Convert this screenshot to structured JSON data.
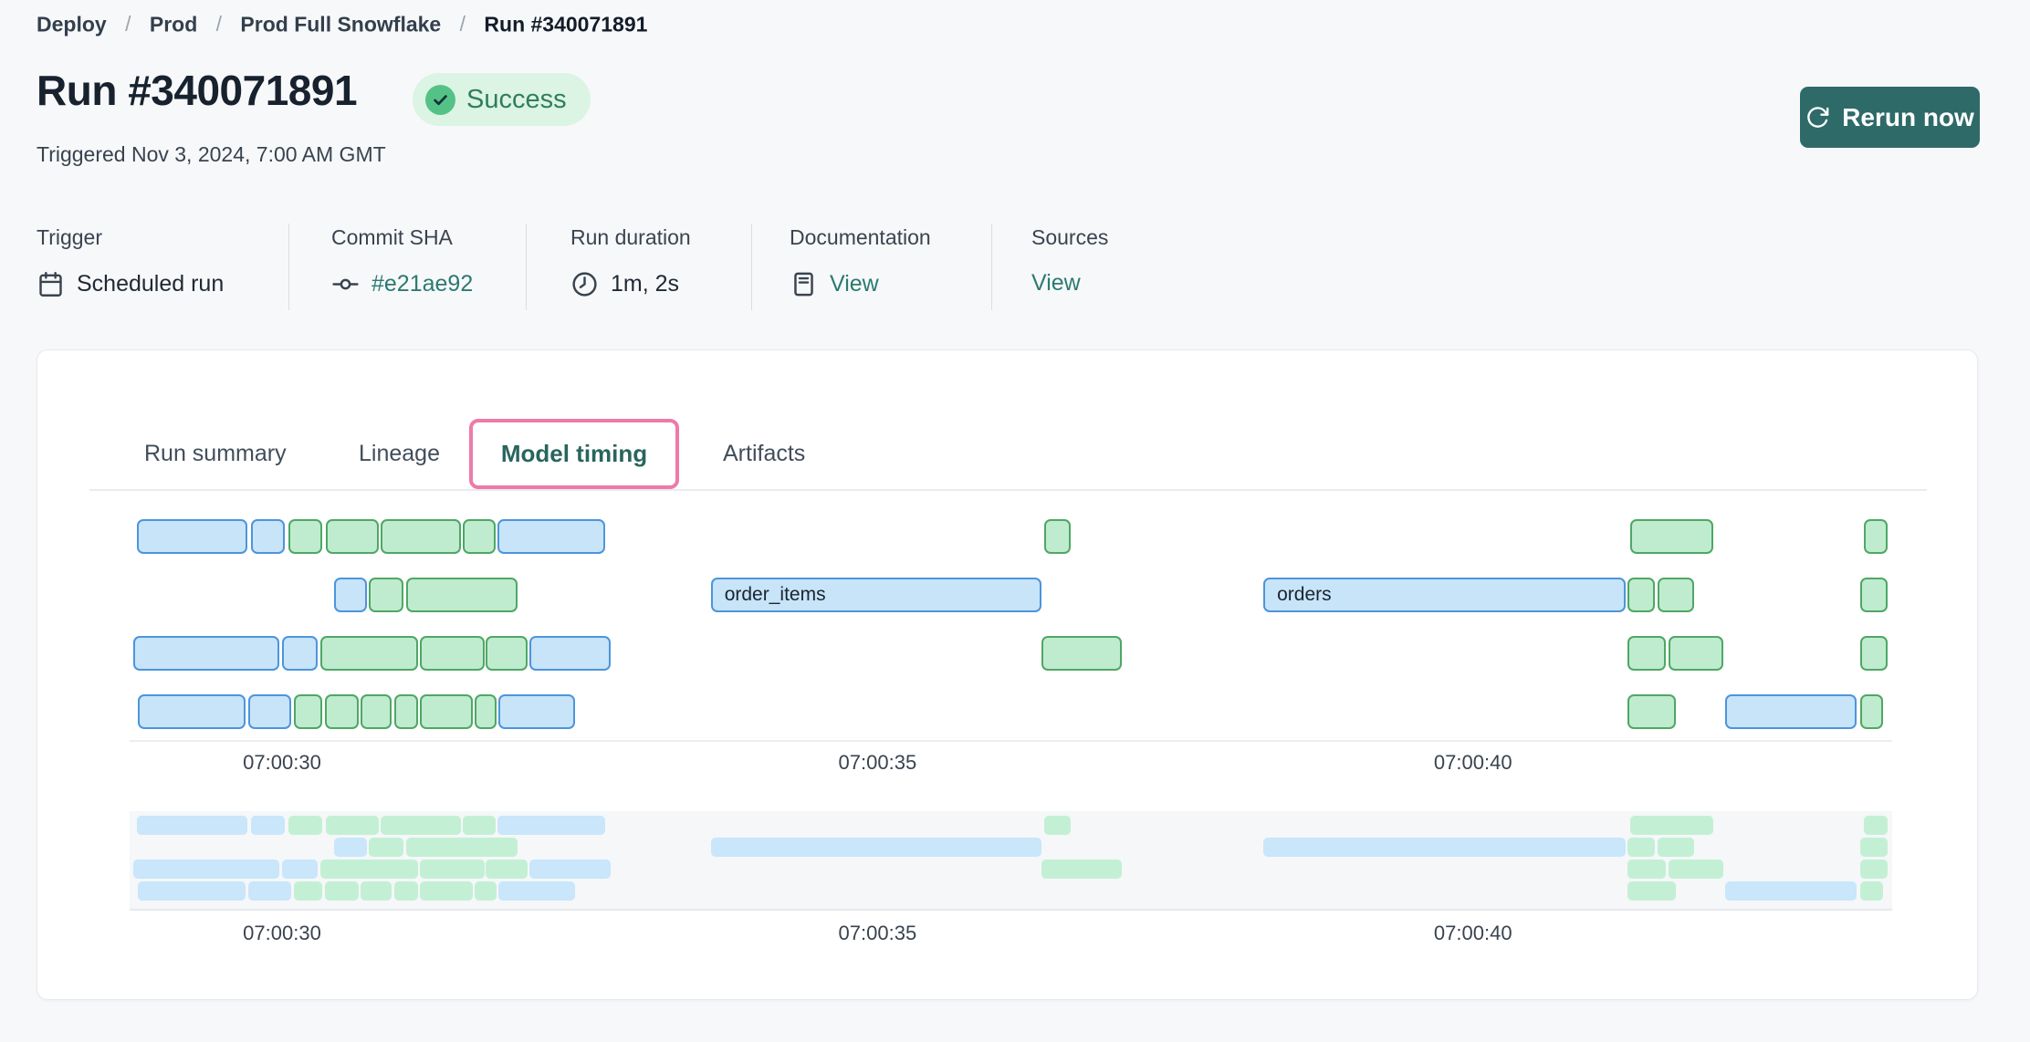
{
  "breadcrumb": {
    "separator": "/",
    "items": [
      "Deploy",
      "Prod",
      "Prod Full Snowflake",
      "Run #340071891"
    ]
  },
  "header": {
    "title": "Run #340071891",
    "status": "Success",
    "triggered": "Triggered Nov 3, 2024, 7:00 AM GMT",
    "rerun_label": "Rerun now"
  },
  "meta": [
    {
      "label": "Trigger",
      "value": "Scheduled run",
      "icon": "calendar-icon",
      "link": false
    },
    {
      "label": "Commit SHA",
      "value": "#e21ae92",
      "icon": "commit-icon",
      "link": true
    },
    {
      "label": "Run duration",
      "value": "1m, 2s",
      "icon": "clock-icon",
      "link": false
    },
    {
      "label": "Documentation",
      "value": "View",
      "icon": "document-icon",
      "link": true
    },
    {
      "label": "Sources",
      "value": "View",
      "icon": null,
      "link": true
    }
  ],
  "tabs": [
    {
      "label": "Run summary",
      "active": false,
      "highlighted": false
    },
    {
      "label": "Lineage",
      "active": false,
      "highlighted": false
    },
    {
      "label": "Model timing",
      "active": true,
      "highlighted": true
    },
    {
      "label": "Artifacts",
      "active": false,
      "highlighted": false
    }
  ],
  "colors": {
    "accent_teal": "#2C7A72",
    "button_bg": "#2E6A68",
    "status_bg": "#DCF4E3",
    "status_icon": "#54C287",
    "highlight_pink": "#EE7AA8",
    "bar_blue_fill": "#C8E4F9",
    "bar_blue_border": "#4D95DB",
    "bar_green_fill": "#BFECCF",
    "bar_green_border": "#4FA765",
    "mini_blue": "#C9E6FA",
    "mini_green": "#C3F0D4"
  },
  "chart_data": {
    "type": "gantt",
    "title": "Model timing",
    "time_axis": {
      "unit": "seconds after 07:00:00 GMT",
      "min": 28.72,
      "max": 43.52,
      "ticks": [
        {
          "t": 30,
          "label": "07:00:30"
        },
        {
          "t": 35,
          "label": "07:00:35"
        },
        {
          "t": 40,
          "label": "07:00:40"
        }
      ]
    },
    "rows": [
      [
        {
          "start": 28.78,
          "end": 29.71,
          "color": "blue"
        },
        {
          "start": 29.74,
          "end": 30.02,
          "color": "blue"
        },
        {
          "start": 30.05,
          "end": 30.34,
          "color": "green"
        },
        {
          "start": 30.37,
          "end": 30.81,
          "color": "green"
        },
        {
          "start": 30.83,
          "end": 31.5,
          "color": "green"
        },
        {
          "start": 31.52,
          "end": 31.79,
          "color": "green"
        },
        {
          "start": 31.81,
          "end": 32.71,
          "color": "blue"
        },
        {
          "start": 36.4,
          "end": 36.62,
          "color": "green"
        },
        {
          "start": 41.32,
          "end": 42.02,
          "color": "green"
        },
        {
          "start": 43.28,
          "end": 43.48,
          "color": "green"
        }
      ],
      [
        {
          "start": 30.44,
          "end": 30.71,
          "color": "blue"
        },
        {
          "start": 30.73,
          "end": 31.02,
          "color": "green"
        },
        {
          "start": 31.04,
          "end": 31.98,
          "color": "green"
        },
        {
          "start": 33.6,
          "end": 36.38,
          "color": "blue",
          "label": "order_items"
        },
        {
          "start": 38.24,
          "end": 41.28,
          "color": "blue",
          "label": "orders"
        },
        {
          "start": 41.3,
          "end": 41.53,
          "color": "green"
        },
        {
          "start": 41.55,
          "end": 41.86,
          "color": "green"
        },
        {
          "start": 43.25,
          "end": 43.48,
          "color": "green"
        }
      ],
      [
        {
          "start": 28.75,
          "end": 29.98,
          "color": "blue"
        },
        {
          "start": 30.0,
          "end": 30.3,
          "color": "blue"
        },
        {
          "start": 30.32,
          "end": 31.14,
          "color": "green"
        },
        {
          "start": 31.16,
          "end": 31.7,
          "color": "green"
        },
        {
          "start": 31.71,
          "end": 32.06,
          "color": "green"
        },
        {
          "start": 32.08,
          "end": 32.76,
          "color": "blue"
        },
        {
          "start": 36.38,
          "end": 37.05,
          "color": "green"
        },
        {
          "start": 41.3,
          "end": 41.62,
          "color": "green"
        },
        {
          "start": 41.64,
          "end": 42.1,
          "color": "green"
        },
        {
          "start": 43.25,
          "end": 43.48,
          "color": "green"
        }
      ],
      [
        {
          "start": 28.79,
          "end": 29.69,
          "color": "blue"
        },
        {
          "start": 29.72,
          "end": 30.08,
          "color": "blue"
        },
        {
          "start": 30.1,
          "end": 30.34,
          "color": "green"
        },
        {
          "start": 30.36,
          "end": 30.64,
          "color": "green"
        },
        {
          "start": 30.66,
          "end": 30.92,
          "color": "green"
        },
        {
          "start": 30.94,
          "end": 31.14,
          "color": "green"
        },
        {
          "start": 31.16,
          "end": 31.6,
          "color": "green"
        },
        {
          "start": 31.62,
          "end": 31.8,
          "color": "green"
        },
        {
          "start": 31.82,
          "end": 32.46,
          "color": "blue"
        },
        {
          "start": 41.3,
          "end": 41.7,
          "color": "green"
        },
        {
          "start": 42.12,
          "end": 43.22,
          "color": "blue"
        },
        {
          "start": 43.25,
          "end": 43.44,
          "color": "green"
        }
      ]
    ]
  }
}
